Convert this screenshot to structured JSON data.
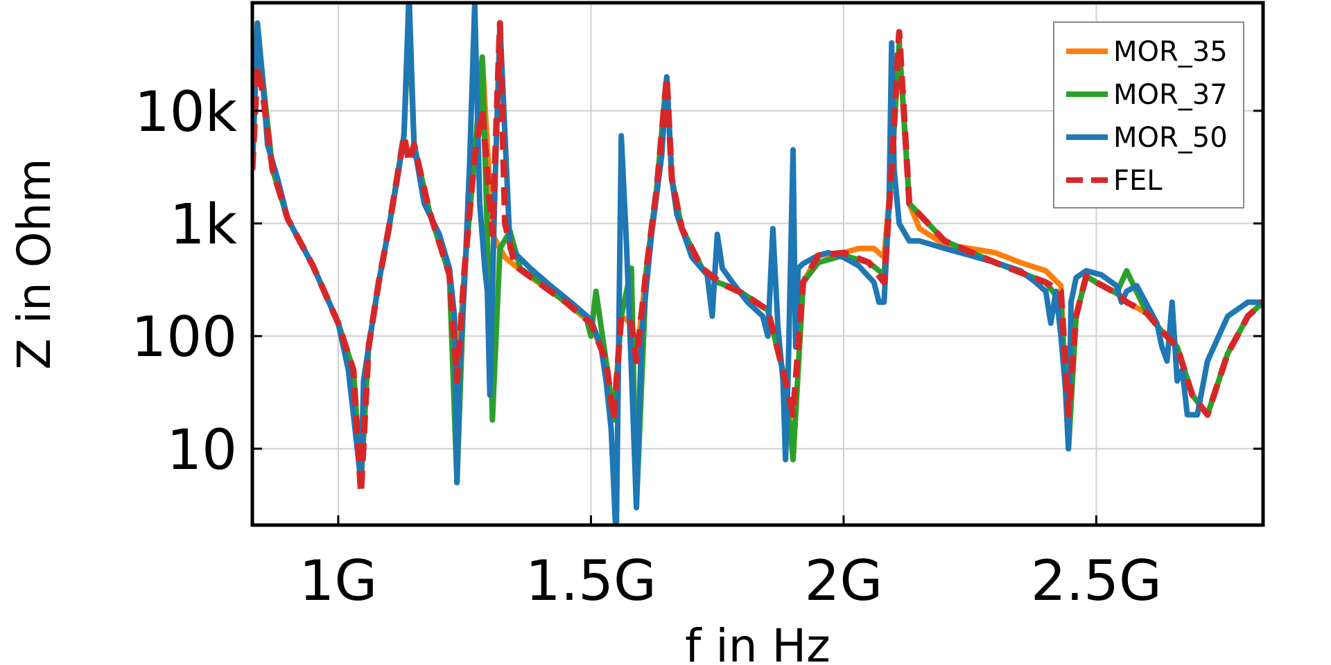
{
  "chart_data": {
    "type": "line",
    "xlabel": "f in Hz",
    "ylabel": "Z in Ohm",
    "yscale": "log",
    "xlim": [
      830000000,
      2830000000
    ],
    "ylim": [
      2.1,
      91000
    ],
    "grid": true,
    "legend_position": "top-right",
    "x_ticks": [
      {
        "value": 1000000000,
        "label": "1G"
      },
      {
        "value": 1500000000,
        "label": "1.5G"
      },
      {
        "value": 2000000000,
        "label": "2G"
      },
      {
        "value": 2500000000,
        "label": "2.5G"
      }
    ],
    "y_ticks": [
      {
        "value": 10,
        "label": "10"
      },
      {
        "value": 100,
        "label": "100"
      },
      {
        "value": 1000,
        "label": "1k"
      },
      {
        "value": 10000,
        "label": "10k"
      }
    ],
    "series": [
      {
        "name": "MOR_35",
        "color": "#ff7f0e",
        "style": "solid",
        "x": [
          830000000,
          840000000,
          850000000,
          870000000,
          900000000,
          950000000,
          1000000000,
          1030000000,
          1045000000,
          1060000000,
          1080000000,
          1100000000,
          1130000000,
          1140000000,
          1150000000,
          1180000000,
          1220000000,
          1235000000,
          1250000000,
          1270000000,
          1285000000,
          1305000000,
          1320000000,
          1330000000,
          1350000000,
          1400000000,
          1450000000,
          1500000000,
          1530000000,
          1545000000,
          1560000000,
          1580000000,
          1590000000,
          1610000000,
          1630000000,
          1650000000,
          1660000000,
          1680000000,
          1720000000,
          1750000000,
          1760000000,
          1800000000,
          1850000000,
          1885000000,
          1900000000,
          1920000000,
          1950000000,
          2000000000,
          2030000000,
          2060000000,
          2080000000,
          2095000000,
          2110000000,
          2130000000,
          2150000000,
          2200000000,
          2250000000,
          2300000000,
          2350000000,
          2400000000,
          2430000000,
          2445000000,
          2460000000,
          2480000000,
          2500000000,
          2540000000,
          2560000000,
          2600000000,
          2630000000,
          2660000000,
          2690000000,
          2720000000,
          2760000000,
          2800000000,
          2830000000
        ],
        "values": [
          3000,
          60000,
          20000,
          3000,
          1100,
          420,
          130,
          50,
          5,
          80,
          300,
          900,
          6000,
          70000,
          5000,
          1300,
          350,
          40,
          400,
          4000,
          30000,
          800,
          600,
          500,
          420,
          290,
          200,
          130,
          60,
          18,
          150,
          130,
          60,
          400,
          2000,
          20000,
          2500,
          900,
          400,
          300,
          290,
          240,
          170,
          40,
          8,
          300,
          520,
          550,
          600,
          600,
          500,
          3000,
          40000,
          1500,
          900,
          650,
          600,
          550,
          450,
          380,
          280,
          10,
          150,
          340,
          300,
          240,
          200,
          160,
          110,
          80,
          30,
          20,
          70,
          150,
          200
        ]
      },
      {
        "name": "MOR_37",
        "color": "#2ca02c",
        "style": "solid",
        "x": [
          830000000,
          840000000,
          850000000,
          870000000,
          900000000,
          950000000,
          1000000000,
          1030000000,
          1045000000,
          1060000000,
          1080000000,
          1100000000,
          1130000000,
          1140000000,
          1150000000,
          1180000000,
          1220000000,
          1235000000,
          1250000000,
          1270000000,
          1285000000,
          1305000000,
          1320000000,
          1340000000,
          1360000000,
          1400000000,
          1450000000,
          1490000000,
          1500000000,
          1510000000,
          1530000000,
          1545000000,
          1560000000,
          1580000000,
          1590000000,
          1610000000,
          1630000000,
          1650000000,
          1660000000,
          1680000000,
          1720000000,
          1750000000,
          1760000000,
          1800000000,
          1850000000,
          1885000000,
          1900000000,
          1920000000,
          1950000000,
          2000000000,
          2050000000,
          2080000000,
          2095000000,
          2110000000,
          2130000000,
          2200000000,
          2300000000,
          2400000000,
          2430000000,
          2445000000,
          2460000000,
          2480000000,
          2500000000,
          2540000000,
          2560000000,
          2600000000,
          2630000000,
          2660000000,
          2690000000,
          2720000000,
          2760000000,
          2800000000,
          2830000000
        ],
        "values": [
          3000,
          60000,
          20000,
          3000,
          1100,
          420,
          130,
          50,
          5,
          80,
          300,
          900,
          6000,
          70000,
          5000,
          1300,
          350,
          5,
          400,
          4000,
          30000,
          18,
          600,
          850,
          400,
          300,
          200,
          150,
          100,
          250,
          60,
          18,
          150,
          400,
          3,
          400,
          2000,
          20000,
          2500,
          900,
          400,
          300,
          290,
          240,
          170,
          40,
          8,
          300,
          450,
          520,
          450,
          350,
          3000,
          40000,
          1500,
          700,
          450,
          300,
          200,
          10,
          150,
          340,
          300,
          240,
          380,
          160,
          110,
          80,
          30,
          20,
          70,
          150,
          200
        ]
      },
      {
        "name": "MOR_50",
        "color": "#1f77b4",
        "style": "solid",
        "x": [
          830000000,
          840000000,
          850000000,
          860000000,
          880000000,
          900000000,
          950000000,
          1000000000,
          1020000000,
          1030000000,
          1040000000,
          1045000000,
          1050000000,
          1060000000,
          1080000000,
          1100000000,
          1120000000,
          1130000000,
          1140000000,
          1150000000,
          1170000000,
          1200000000,
          1220000000,
          1230000000,
          1235000000,
          1240000000,
          1250000000,
          1260000000,
          1270000000,
          1280000000,
          1290000000,
          1295000000,
          1300000000,
          1310000000,
          1320000000,
          1340000000,
          1380000000,
          1420000000,
          1460000000,
          1500000000,
          1520000000,
          1530000000,
          1540000000,
          1550000000,
          1560000000,
          1570000000,
          1580000000,
          1590000000,
          1600000000,
          1620000000,
          1640000000,
          1650000000,
          1660000000,
          1670000000,
          1700000000,
          1730000000,
          1740000000,
          1750000000,
          1760000000,
          1780000000,
          1810000000,
          1840000000,
          1850000000,
          1860000000,
          1870000000,
          1880000000,
          1885000000,
          1890000000,
          1900000000,
          1905000000,
          1910000000,
          1920000000,
          1950000000,
          1970000000,
          2000000000,
          2030000000,
          2060000000,
          2070000000,
          2080000000,
          2090000000,
          2095000000,
          2100000000,
          2110000000,
          2130000000,
          2150000000,
          2200000000,
          2250000000,
          2300000000,
          2350000000,
          2380000000,
          2400000000,
          2410000000,
          2420000000,
          2430000000,
          2440000000,
          2445000000,
          2450000000,
          2460000000,
          2480000000,
          2510000000,
          2540000000,
          2550000000,
          2560000000,
          2580000000,
          2620000000,
          2630000000,
          2640000000,
          2650000000,
          2660000000,
          2670000000,
          2680000000,
          2700000000,
          2720000000,
          2760000000,
          2800000000,
          2830000000
        ],
        "values": [
          3000,
          60000,
          20000,
          5000,
          2500,
          1100,
          420,
          130,
          50,
          20,
          8,
          5,
          40,
          80,
          300,
          900,
          3000,
          6000,
          110000,
          5000,
          1500,
          800,
          400,
          150,
          5,
          50,
          300,
          3500,
          90000,
          1500,
          400,
          250,
          30,
          2000,
          60000,
          600,
          400,
          280,
          200,
          140,
          80,
          40,
          15,
          1.5,
          6000,
          700,
          50,
          3,
          100,
          800,
          4000,
          20000,
          2500,
          1200,
          500,
          350,
          150,
          800,
          400,
          300,
          200,
          150,
          100,
          900,
          120,
          40,
          8,
          40,
          4500,
          80,
          400,
          440,
          520,
          550,
          500,
          420,
          300,
          200,
          200,
          1500,
          40000,
          3000,
          1000,
          700,
          700,
          600,
          520,
          450,
          380,
          300,
          250,
          130,
          250,
          100,
          30,
          10,
          200,
          330,
          380,
          350,
          280,
          200,
          250,
          280,
          130,
          80,
          60,
          200,
          40,
          50,
          20,
          20,
          60,
          150,
          200,
          200
        ]
      },
      {
        "name": "FEL",
        "color": "#d62728",
        "style": "dashed",
        "x": [
          830000000,
          840000000,
          850000000,
          870000000,
          900000000,
          950000000,
          1000000000,
          1030000000,
          1045000000,
          1060000000,
          1080000000,
          1100000000,
          1130000000,
          1140000000,
          1150000000,
          1180000000,
          1220000000,
          1235000000,
          1250000000,
          1270000000,
          1285000000,
          1305000000,
          1320000000,
          1330000000,
          1350000000,
          1400000000,
          1450000000,
          1500000000,
          1530000000,
          1545000000,
          1560000000,
          1580000000,
          1590000000,
          1610000000,
          1630000000,
          1650000000,
          1660000000,
          1680000000,
          1720000000,
          1760000000,
          1800000000,
          1850000000,
          1885000000,
          1900000000,
          1920000000,
          1950000000,
          2000000000,
          2050000000,
          2080000000,
          2095000000,
          2110000000,
          2130000000,
          2200000000,
          2300000000,
          2400000000,
          2430000000,
          2445000000,
          2460000000,
          2480000000,
          2500000000,
          2540000000,
          2560000000,
          2600000000,
          2630000000,
          2660000000,
          2690000000,
          2720000000,
          2760000000,
          2800000000,
          2830000000
        ],
        "values": [
          3000,
          25000,
          15000,
          3000,
          1100,
          420,
          130,
          50,
          4,
          80,
          300,
          900,
          6000,
          3500,
          5000,
          1300,
          350,
          40,
          400,
          4000,
          10000,
          800,
          60000,
          1000,
          420,
          290,
          200,
          130,
          60,
          18,
          150,
          130,
          60,
          400,
          2000,
          20000,
          2500,
          900,
          400,
          290,
          240,
          170,
          40,
          20,
          300,
          520,
          550,
          450,
          300,
          3000,
          50000,
          1500,
          700,
          450,
          300,
          250,
          20,
          150,
          340,
          300,
          240,
          200,
          160,
          110,
          80,
          30,
          20,
          70,
          150,
          200
        ]
      }
    ]
  }
}
